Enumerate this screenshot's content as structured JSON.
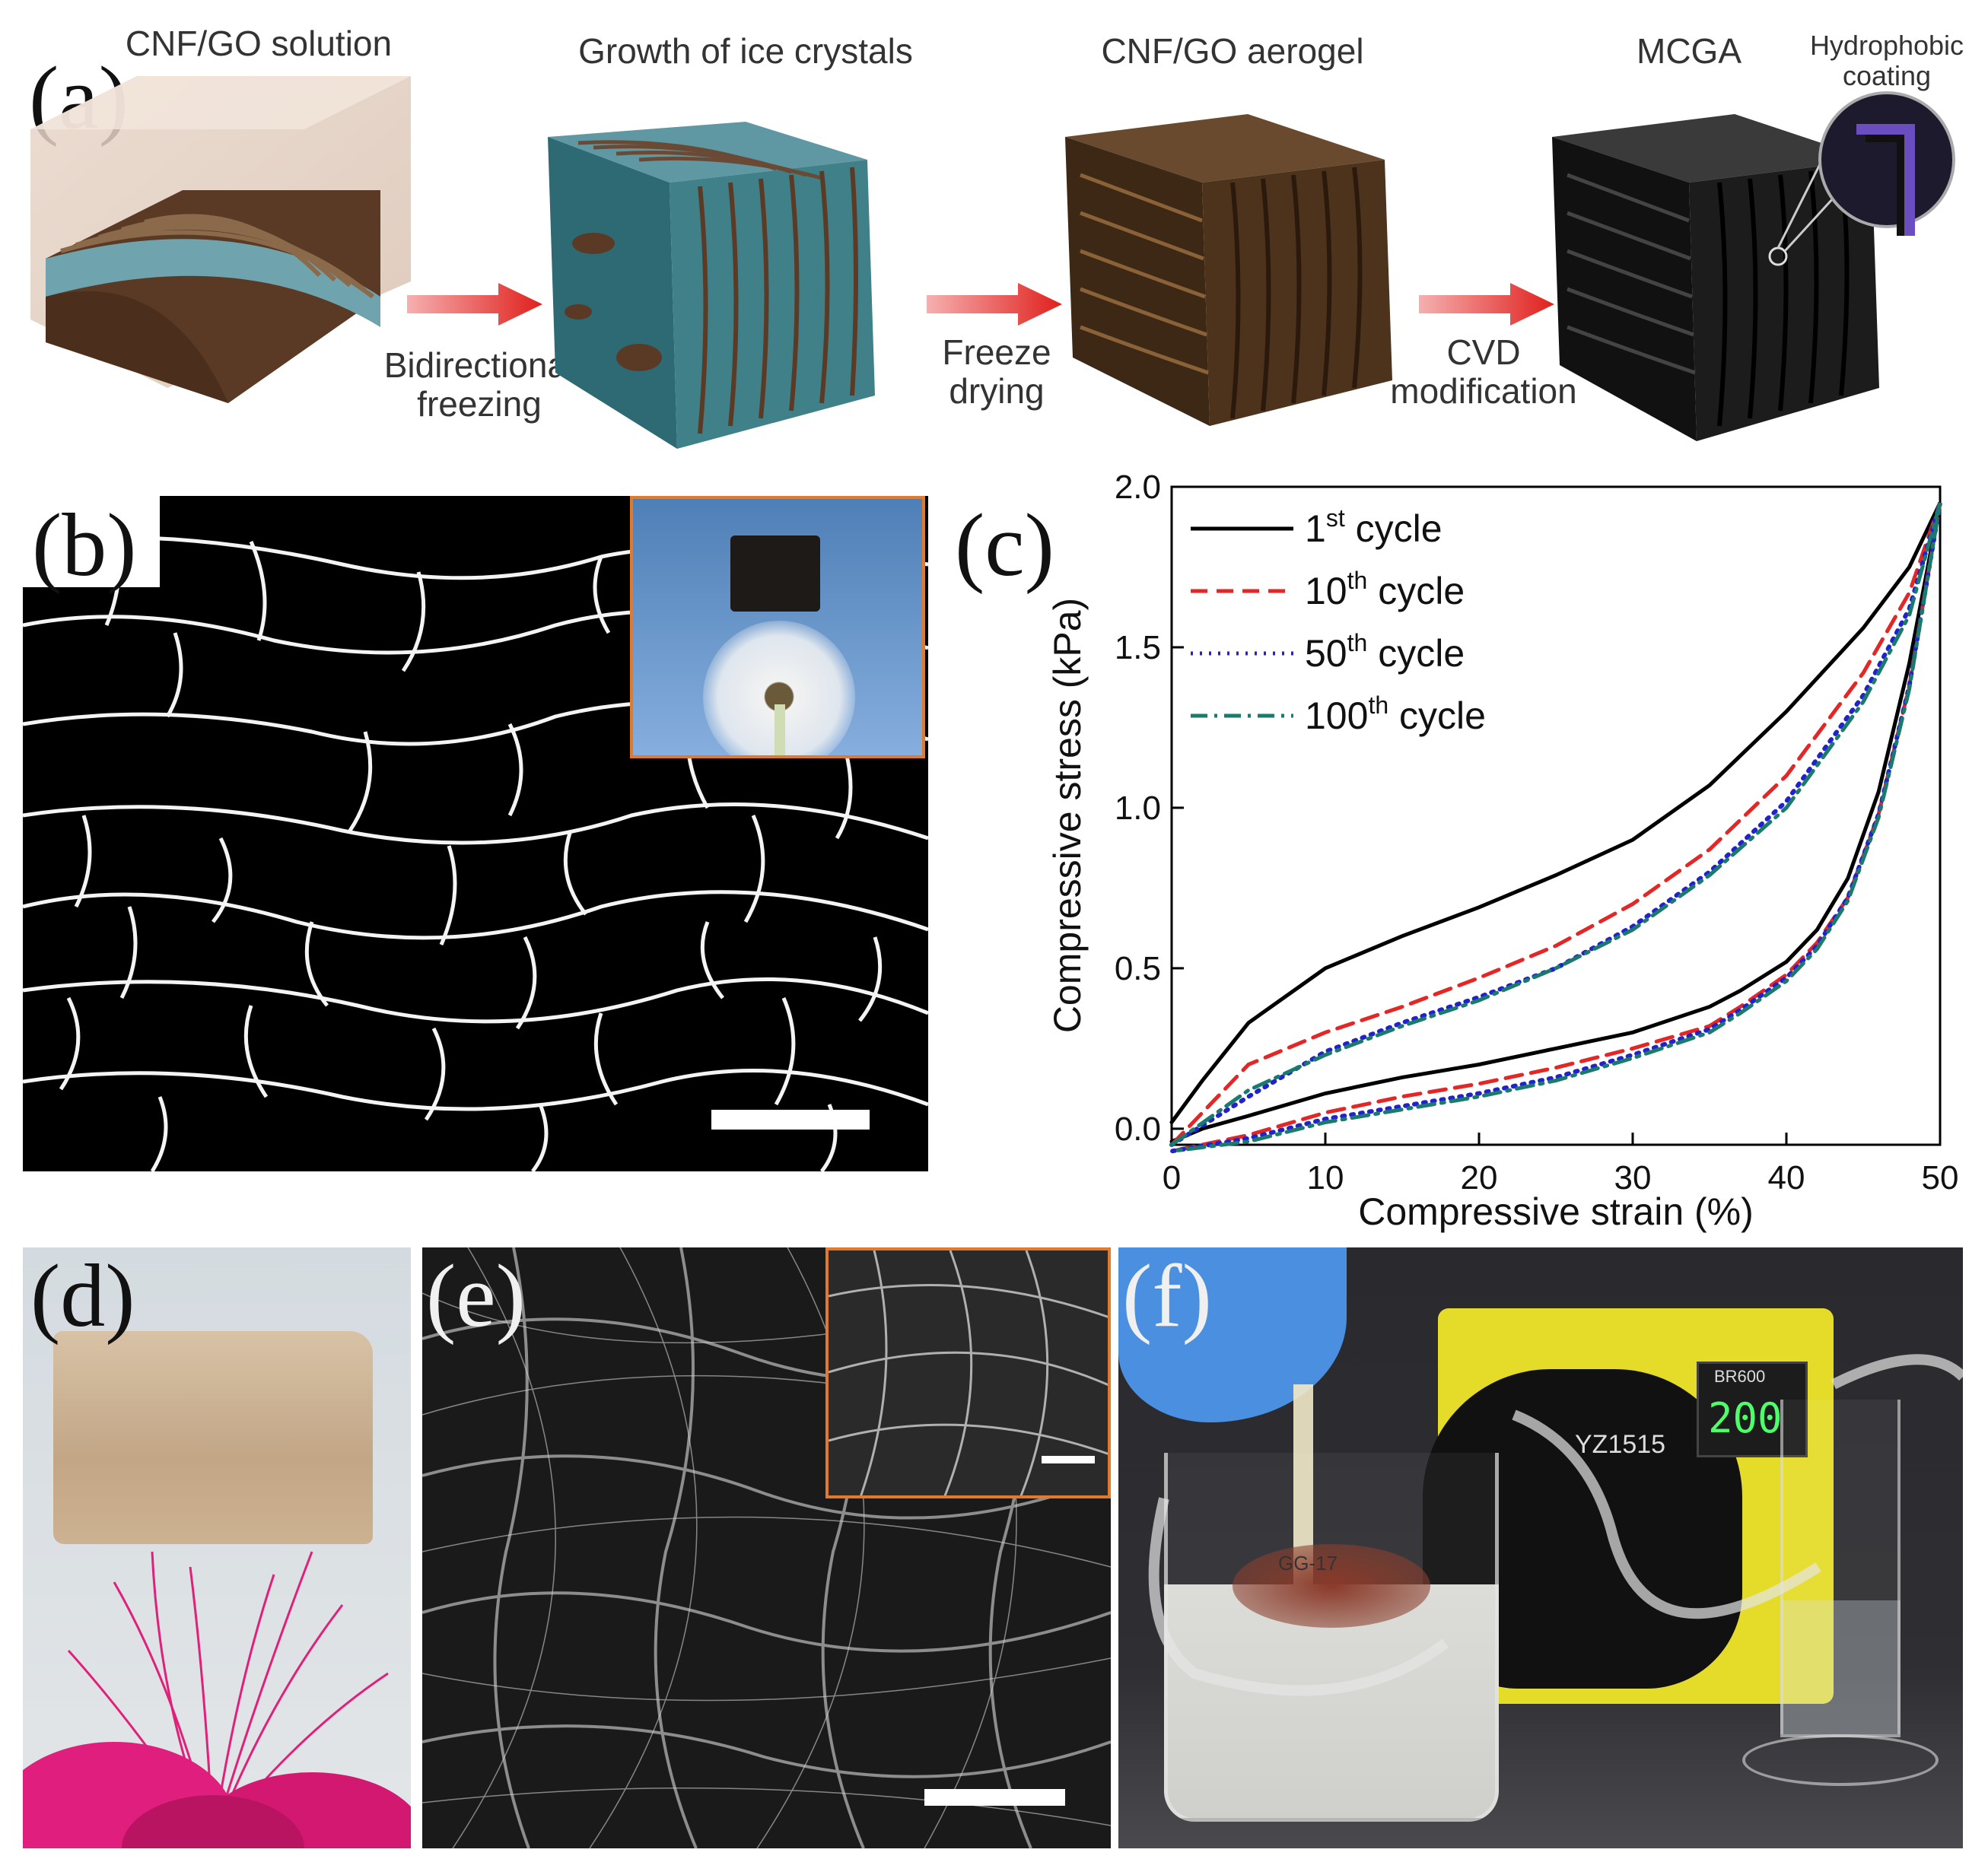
{
  "panel_a": {
    "letter": "(a)",
    "steps": [
      {
        "label": "CNF/GO solution"
      },
      {
        "label": "Growth of ice crystals"
      },
      {
        "label": "CNF/GO aerogel"
      },
      {
        "label": "MCGA"
      }
    ],
    "callout": "Hydrophobic coating",
    "arrows": [
      {
        "line1": "Bidirectional",
        "line2": "freezing"
      },
      {
        "line1": "Freeze",
        "line2": "drying"
      },
      {
        "line1": "CVD",
        "line2": "modification"
      }
    ]
  },
  "panel_b": {
    "letter": "(b)"
  },
  "panel_c": {
    "letter": "(c)"
  },
  "panel_d": {
    "letter": "(d)"
  },
  "panel_e": {
    "letter": "(e)"
  },
  "panel_f": {
    "letter": "(f)",
    "pump_display": "200",
    "pump_brand": "BR600",
    "pump_model": "YZ1515",
    "beaker_label": "GG-17"
  },
  "chart_data": {
    "type": "line",
    "xlabel": "Compressive strain (%)",
    "ylabel": "Compressive stress (kPa)",
    "xlim": [
      0,
      50
    ],
    "ylim": [
      -0.05,
      2.0
    ],
    "xticks": [
      "0",
      "10",
      "20",
      "30",
      "40",
      "50"
    ],
    "yticks": [
      "0.0",
      "0.5",
      "1.0",
      "1.5",
      "2.0"
    ],
    "legend_position": "top-left",
    "series": [
      {
        "name": "1st cycle",
        "base": "1",
        "sup": "st",
        "suffix": " cycle",
        "color": "#000000",
        "dash": "solid",
        "loading": [
          [
            0,
            0.02
          ],
          [
            2,
            0.15
          ],
          [
            5,
            0.33
          ],
          [
            10,
            0.5
          ],
          [
            15,
            0.6
          ],
          [
            20,
            0.69
          ],
          [
            25,
            0.79
          ],
          [
            30,
            0.9
          ],
          [
            35,
            1.07
          ],
          [
            40,
            1.3
          ],
          [
            45,
            1.56
          ],
          [
            48,
            1.75
          ],
          [
            50,
            1.95
          ]
        ],
        "unloading": [
          [
            50,
            1.95
          ],
          [
            48,
            1.45
          ],
          [
            46,
            1.05
          ],
          [
            44,
            0.78
          ],
          [
            42,
            0.62
          ],
          [
            40,
            0.52
          ],
          [
            37,
            0.43
          ],
          [
            35,
            0.38
          ],
          [
            30,
            0.3
          ],
          [
            25,
            0.25
          ],
          [
            20,
            0.2
          ],
          [
            15,
            0.16
          ],
          [
            10,
            0.11
          ],
          [
            5,
            0.04
          ],
          [
            2,
            0.0
          ],
          [
            0,
            -0.04
          ]
        ]
      },
      {
        "name": "10th cycle",
        "base": "10",
        "sup": "th",
        "suffix": " cycle",
        "color": "#e32626",
        "dash": "dashed",
        "loading": [
          [
            0,
            -0.05
          ],
          [
            5,
            0.2
          ],
          [
            10,
            0.3
          ],
          [
            15,
            0.38
          ],
          [
            20,
            0.47
          ],
          [
            25,
            0.57
          ],
          [
            30,
            0.7
          ],
          [
            35,
            0.87
          ],
          [
            40,
            1.1
          ],
          [
            45,
            1.42
          ],
          [
            48,
            1.67
          ],
          [
            50,
            1.95
          ]
        ],
        "unloading": [
          [
            50,
            1.95
          ],
          [
            48,
            1.38
          ],
          [
            46,
            0.98
          ],
          [
            44,
            0.72
          ],
          [
            42,
            0.58
          ],
          [
            40,
            0.48
          ],
          [
            37,
            0.38
          ],
          [
            35,
            0.32
          ],
          [
            30,
            0.25
          ],
          [
            25,
            0.19
          ],
          [
            20,
            0.14
          ],
          [
            15,
            0.1
          ],
          [
            10,
            0.05
          ],
          [
            5,
            -0.02
          ],
          [
            0,
            -0.07
          ]
        ]
      },
      {
        "name": "50th cycle",
        "base": "50",
        "sup": "th",
        "suffix": " cycle",
        "color": "#2222cc",
        "dash": "dotted",
        "loading": [
          [
            0,
            -0.05
          ],
          [
            5,
            0.1
          ],
          [
            10,
            0.24
          ],
          [
            15,
            0.33
          ],
          [
            20,
            0.41
          ],
          [
            25,
            0.5
          ],
          [
            30,
            0.63
          ],
          [
            35,
            0.8
          ],
          [
            40,
            1.02
          ],
          [
            45,
            1.35
          ],
          [
            48,
            1.62
          ],
          [
            50,
            1.95
          ]
        ],
        "unloading": [
          [
            50,
            1.95
          ],
          [
            48,
            1.38
          ],
          [
            46,
            0.98
          ],
          [
            44,
            0.72
          ],
          [
            42,
            0.57
          ],
          [
            40,
            0.47
          ],
          [
            37,
            0.37
          ],
          [
            35,
            0.31
          ],
          [
            30,
            0.23
          ],
          [
            25,
            0.16
          ],
          [
            20,
            0.11
          ],
          [
            15,
            0.07
          ],
          [
            10,
            0.03
          ],
          [
            5,
            -0.03
          ],
          [
            0,
            -0.07
          ]
        ]
      },
      {
        "name": "100th cycle",
        "base": "100",
        "sup": "th",
        "suffix": " cycle",
        "color": "#1a7a6e",
        "dash": "dashdot",
        "loading": [
          [
            0,
            -0.05
          ],
          [
            5,
            0.12
          ],
          [
            10,
            0.23
          ],
          [
            15,
            0.32
          ],
          [
            20,
            0.4
          ],
          [
            25,
            0.5
          ],
          [
            30,
            0.62
          ],
          [
            35,
            0.79
          ],
          [
            40,
            1.0
          ],
          [
            45,
            1.33
          ],
          [
            48,
            1.6
          ],
          [
            50,
            1.95
          ]
        ],
        "unloading": [
          [
            50,
            1.95
          ],
          [
            48,
            1.37
          ],
          [
            46,
            0.97
          ],
          [
            44,
            0.71
          ],
          [
            42,
            0.56
          ],
          [
            40,
            0.46
          ],
          [
            37,
            0.36
          ],
          [
            35,
            0.3
          ],
          [
            30,
            0.22
          ],
          [
            25,
            0.15
          ],
          [
            20,
            0.1
          ],
          [
            15,
            0.06
          ],
          [
            10,
            0.02
          ],
          [
            5,
            -0.04
          ],
          [
            0,
            -0.07
          ]
        ]
      }
    ]
  }
}
